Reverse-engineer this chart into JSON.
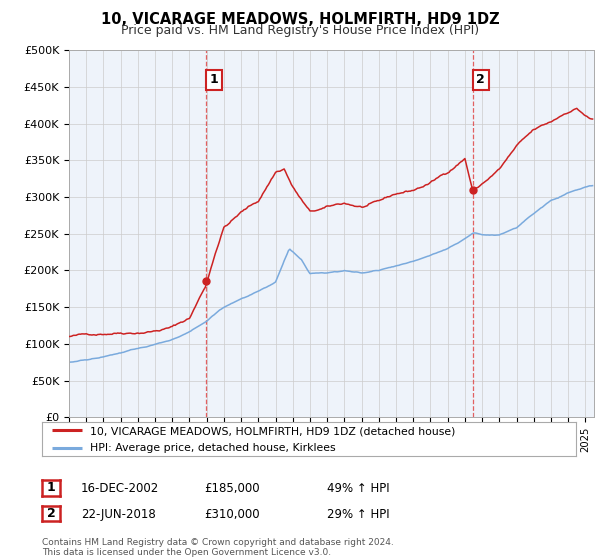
{
  "title": "10, VICARAGE MEADOWS, HOLMFIRTH, HD9 1DZ",
  "subtitle": "Price paid vs. HM Land Registry's House Price Index (HPI)",
  "ylabel_ticks": [
    "£0",
    "£50K",
    "£100K",
    "£150K",
    "£200K",
    "£250K",
    "£300K",
    "£350K",
    "£400K",
    "£450K",
    "£500K"
  ],
  "ytick_values": [
    0,
    50000,
    100000,
    150000,
    200000,
    250000,
    300000,
    350000,
    400000,
    450000,
    500000
  ],
  "ylim": [
    0,
    500000
  ],
  "xlim_start": 1995.0,
  "xlim_end": 2025.5,
  "sale1_x": 2002.96,
  "sale1_y": 185000,
  "sale2_x": 2018.47,
  "sale2_y": 310000,
  "vline_color": "#e05050",
  "hpi_line_color": "#7aaadd",
  "price_line_color": "#cc2222",
  "chart_bg_color": "#eef3fa",
  "legend_entry1": "10, VICARAGE MEADOWS, HOLMFIRTH, HD9 1DZ (detached house)",
  "legend_entry2": "HPI: Average price, detached house, Kirklees",
  "table_row1": [
    "1",
    "16-DEC-2002",
    "£185,000",
    "49% ↑ HPI"
  ],
  "table_row2": [
    "2",
    "22-JUN-2018",
    "£310,000",
    "29% ↑ HPI"
  ],
  "footer": "Contains HM Land Registry data © Crown copyright and database right 2024.\nThis data is licensed under the Open Government Licence v3.0.",
  "bg_color": "#ffffff",
  "grid_color": "#cccccc",
  "title_fontsize": 10.5,
  "subtitle_fontsize": 9,
  "axis_fontsize": 8,
  "price_knots_x": [
    1995.0,
    1996.0,
    1997.0,
    1998.0,
    1999.0,
    2000.0,
    2001.0,
    2002.0,
    2002.96,
    2003.5,
    2004.0,
    2005.0,
    2006.0,
    2007.0,
    2007.5,
    2008.0,
    2009.0,
    2010.0,
    2011.0,
    2012.0,
    2013.0,
    2014.0,
    2015.0,
    2016.0,
    2017.0,
    2018.0,
    2018.47,
    2019.0,
    2020.0,
    2021.0,
    2022.0,
    2023.0,
    2024.0,
    2024.5,
    2025.3
  ],
  "price_knots_y": [
    110000,
    112000,
    115000,
    118000,
    120000,
    123000,
    128000,
    140000,
    185000,
    230000,
    265000,
    285000,
    300000,
    340000,
    345000,
    320000,
    285000,
    290000,
    295000,
    290000,
    295000,
    305000,
    310000,
    320000,
    335000,
    355000,
    310000,
    320000,
    340000,
    370000,
    390000,
    400000,
    415000,
    420000,
    405000
  ],
  "hpi_knots_x": [
    1995.0,
    1996.0,
    1997.0,
    1998.0,
    1999.0,
    2000.0,
    2001.0,
    2002.0,
    2003.0,
    2004.0,
    2005.0,
    2006.0,
    2007.0,
    2007.8,
    2008.5,
    2009.0,
    2010.0,
    2011.0,
    2012.0,
    2013.0,
    2014.0,
    2015.0,
    2016.0,
    2017.0,
    2018.0,
    2018.5,
    2019.0,
    2020.0,
    2021.0,
    2022.0,
    2023.0,
    2024.0,
    2025.3
  ],
  "hpi_knots_y": [
    75000,
    78000,
    82000,
    87000,
    92000,
    98000,
    105000,
    115000,
    130000,
    150000,
    162000,
    172000,
    185000,
    230000,
    215000,
    195000,
    195000,
    198000,
    195000,
    198000,
    205000,
    210000,
    218000,
    228000,
    242000,
    250000,
    248000,
    248000,
    258000,
    278000,
    295000,
    305000,
    315000
  ]
}
